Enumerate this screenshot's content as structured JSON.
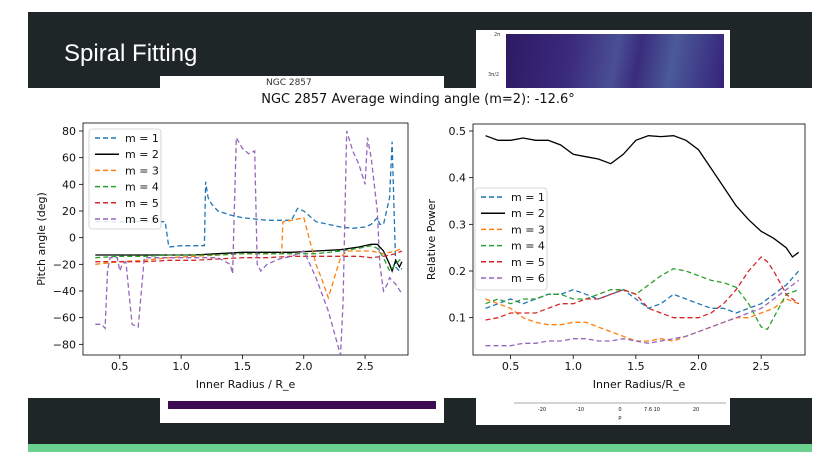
{
  "slide": {
    "title": "Spiral Fitting",
    "inset_top_ticks": [
      "2π",
      "3π/2"
    ],
    "inset_left_caption": "NGC 2857",
    "bottom_axis_ticks": [
      "-20",
      "-10",
      "0",
      "7.6 10",
      "20"
    ],
    "bottom_axis_label": "p"
  },
  "colors": {
    "slide_bg": "#1f2628",
    "accent_green": "#6ad18e",
    "m1": "#1f77b4",
    "m2": "#000000",
    "m3": "#ff7f0e",
    "m4": "#2ca02c",
    "m5": "#d62728",
    "m6": "#9467bd"
  },
  "chart_data": [
    {
      "type": "line",
      "title": "NGC 2857 Average winding angle (m=2): -12.6°",
      "xlabel": "Inner Radius / R_e",
      "ylabel": "Pitch angle (deg)",
      "xlim": [
        0.2,
        2.85
      ],
      "ylim": [
        -88,
        86
      ],
      "xticks": [
        0.5,
        1.0,
        1.5,
        2.0,
        2.5
      ],
      "xtick_labels": [
        "0.5",
        "1.0",
        "1.5",
        "2.0",
        "2.5"
      ],
      "yticks": [
        80,
        60,
        40,
        20,
        0,
        -20,
        -40,
        -60,
        -80
      ],
      "ytick_labels": [
        "80",
        "60",
        "40",
        "20",
        "0",
        "−20",
        "−40",
        "−60",
        "−80"
      ],
      "legend": "top-left",
      "grid": false,
      "series": [
        {
          "name": "m = 1",
          "color": "#1f77b4",
          "dashed": true,
          "x": [
            0.3,
            0.5,
            0.6,
            0.7,
            0.8,
            0.87,
            0.9,
            1.0,
            1.1,
            1.19,
            1.2,
            1.22,
            1.25,
            1.3,
            1.4,
            1.5,
            1.6,
            1.7,
            1.8,
            1.9,
            1.95,
            2.0,
            2.1,
            2.2,
            2.3,
            2.4,
            2.5,
            2.55,
            2.6,
            2.62,
            2.65,
            2.7,
            2.72,
            2.75,
            2.78,
            2.8
          ],
          "y": [
            12,
            12,
            12,
            12,
            12,
            12,
            -7,
            -6,
            -6,
            -6,
            42,
            30,
            25,
            20,
            17,
            15,
            14,
            13,
            13,
            13,
            22,
            20,
            12,
            10,
            8,
            7,
            8,
            10,
            15,
            10,
            10,
            30,
            72,
            -22,
            -25,
            -23
          ]
        },
        {
          "name": "m = 2",
          "color": "#000000",
          "dashed": false,
          "x": [
            0.3,
            0.5,
            0.7,
            0.9,
            1.1,
            1.3,
            1.5,
            1.7,
            1.9,
            2.1,
            2.3,
            2.45,
            2.55,
            2.6,
            2.65,
            2.7,
            2.72,
            2.75,
            2.78,
            2.8
          ],
          "y": [
            -13,
            -13,
            -13,
            -13,
            -13,
            -12,
            -11,
            -11,
            -11,
            -10,
            -9,
            -7,
            -5,
            -5,
            -10,
            -20,
            -25,
            -17,
            -22,
            -18
          ]
        },
        {
          "name": "m = 3",
          "color": "#ff7f0e",
          "dashed": true,
          "x": [
            0.3,
            0.5,
            0.7,
            0.9,
            1.1,
            1.3,
            1.5,
            1.7,
            1.82,
            1.83,
            1.9,
            2.0,
            2.1,
            2.15,
            2.2,
            2.25,
            2.3,
            2.35,
            2.45,
            2.55,
            2.65,
            2.75,
            2.8
          ],
          "y": [
            -20,
            -18,
            -17,
            -15,
            -14,
            -13,
            -12,
            -12,
            -12,
            12,
            13,
            15,
            -20,
            -32,
            -45,
            -30,
            -15,
            -10,
            -10,
            -10,
            -12,
            -10,
            -8
          ]
        },
        {
          "name": "m = 4",
          "color": "#2ca02c",
          "dashed": true,
          "x": [
            0.3,
            0.5,
            0.7,
            0.9,
            1.1,
            1.3,
            1.5,
            1.7,
            1.9,
            2.1,
            2.3,
            2.45,
            2.55,
            2.6,
            2.65,
            2.7,
            2.75,
            2.8
          ],
          "y": [
            -15,
            -14,
            -14,
            -13,
            -13,
            -13,
            -12,
            -12,
            -12,
            -12,
            -10,
            -8,
            -6,
            -8,
            -15,
            -25,
            -20,
            -15
          ]
        },
        {
          "name": "m = 5",
          "color": "#d62728",
          "dashed": true,
          "x": [
            0.3,
            0.5,
            0.7,
            0.9,
            1.1,
            1.3,
            1.5,
            1.7,
            1.9,
            2.1,
            2.3,
            2.45,
            2.55,
            2.65,
            2.7,
            2.75,
            2.8
          ],
          "y": [
            -18,
            -18,
            -18,
            -17,
            -17,
            -16,
            -15,
            -15,
            -14,
            -14,
            -14,
            -14,
            -15,
            -14,
            -13,
            -12,
            -10
          ]
        },
        {
          "name": "m = 6",
          "color": "#9467bd",
          "dashed": true,
          "x": [
            0.3,
            0.35,
            0.38,
            0.4,
            0.42,
            0.45,
            0.48,
            0.5,
            0.52,
            0.55,
            0.6,
            0.65,
            0.7,
            0.75,
            0.8,
            0.85,
            0.9,
            1.0,
            1.2,
            1.3,
            1.4,
            1.42,
            1.45,
            1.5,
            1.55,
            1.6,
            1.62,
            1.65,
            1.7,
            1.8,
            1.9,
            2.0,
            2.1,
            2.2,
            2.3,
            2.32,
            2.35,
            2.4,
            2.45,
            2.5,
            2.52,
            2.55,
            2.6,
            2.62,
            2.65,
            2.68,
            2.7,
            2.75,
            2.8
          ],
          "y": [
            -65,
            -65,
            -68,
            -25,
            -15,
            -15,
            -15,
            -25,
            -20,
            -18,
            -65,
            -67,
            -15,
            -15,
            -15,
            -15,
            -15,
            -15,
            -15,
            -15,
            -20,
            -27,
            75,
            67,
            63,
            65,
            -20,
            -25,
            -20,
            -16,
            -14,
            -10,
            -30,
            -55,
            -88,
            -50,
            80,
            65,
            55,
            40,
            75,
            60,
            20,
            -20,
            -40,
            -35,
            -30,
            -35,
            -42
          ]
        }
      ]
    },
    {
      "type": "line",
      "title": "",
      "xlabel": "Inner Radius/R_e",
      "ylabel": "Relative Power",
      "xlim": [
        0.2,
        2.85
      ],
      "ylim": [
        0.02,
        0.515
      ],
      "xticks": [
        0.5,
        1.0,
        1.5,
        2.0,
        2.5
      ],
      "xtick_labels": [
        "0.5",
        "1.0",
        "1.5",
        "2.0",
        "2.5"
      ],
      "yticks": [
        0.1,
        0.2,
        0.3,
        0.4,
        0.5
      ],
      "ytick_labels": [
        "0.1",
        "0.2",
        "0.3",
        "0.4",
        "0.5"
      ],
      "legend": "center-left",
      "grid": false,
      "series": [
        {
          "name": "m = 1",
          "color": "#1f77b4",
          "dashed": true,
          "x": [
            0.3,
            0.4,
            0.5,
            0.6,
            0.7,
            0.8,
            0.9,
            1.0,
            1.1,
            1.2,
            1.3,
            1.4,
            1.5,
            1.6,
            1.7,
            1.8,
            1.9,
            2.0,
            2.1,
            2.2,
            2.3,
            2.4,
            2.5,
            2.6,
            2.7,
            2.8
          ],
          "y": [
            0.12,
            0.13,
            0.14,
            0.13,
            0.14,
            0.15,
            0.15,
            0.16,
            0.15,
            0.14,
            0.15,
            0.16,
            0.14,
            0.12,
            0.13,
            0.15,
            0.14,
            0.13,
            0.12,
            0.12,
            0.11,
            0.12,
            0.13,
            0.15,
            0.17,
            0.2
          ]
        },
        {
          "name": "m = 2",
          "color": "#000000",
          "dashed": false,
          "x": [
            0.3,
            0.4,
            0.5,
            0.6,
            0.7,
            0.8,
            0.9,
            1.0,
            1.1,
            1.2,
            1.3,
            1.4,
            1.5,
            1.6,
            1.7,
            1.8,
            1.9,
            2.0,
            2.1,
            2.2,
            2.3,
            2.4,
            2.5,
            2.6,
            2.7,
            2.75,
            2.8
          ],
          "y": [
            0.49,
            0.48,
            0.48,
            0.485,
            0.48,
            0.48,
            0.47,
            0.45,
            0.445,
            0.44,
            0.43,
            0.45,
            0.48,
            0.49,
            0.488,
            0.49,
            0.48,
            0.46,
            0.42,
            0.38,
            0.34,
            0.31,
            0.285,
            0.27,
            0.25,
            0.23,
            0.24
          ]
        },
        {
          "name": "m = 3",
          "color": "#ff7f0e",
          "dashed": true,
          "x": [
            0.3,
            0.4,
            0.5,
            0.6,
            0.7,
            0.8,
            0.9,
            1.0,
            1.1,
            1.2,
            1.3,
            1.4,
            1.5,
            1.6,
            1.7,
            1.8,
            1.9,
            2.0,
            2.1,
            2.2,
            2.3,
            2.4,
            2.5,
            2.6,
            2.7,
            2.8
          ],
          "y": [
            0.14,
            0.13,
            0.12,
            0.1,
            0.09,
            0.085,
            0.085,
            0.09,
            0.09,
            0.08,
            0.07,
            0.06,
            0.05,
            0.05,
            0.055,
            0.05,
            0.06,
            0.07,
            0.08,
            0.09,
            0.1,
            0.1,
            0.11,
            0.12,
            0.14,
            0.13
          ]
        },
        {
          "name": "m = 4",
          "color": "#2ca02c",
          "dashed": true,
          "x": [
            0.3,
            0.4,
            0.5,
            0.6,
            0.7,
            0.8,
            0.9,
            1.0,
            1.1,
            1.2,
            1.3,
            1.4,
            1.5,
            1.6,
            1.7,
            1.8,
            1.9,
            2.0,
            2.1,
            2.2,
            2.3,
            2.4,
            2.5,
            2.55,
            2.6,
            2.7,
            2.8
          ],
          "y": [
            0.13,
            0.14,
            0.13,
            0.14,
            0.14,
            0.15,
            0.15,
            0.14,
            0.14,
            0.15,
            0.16,
            0.16,
            0.15,
            0.17,
            0.19,
            0.205,
            0.2,
            0.19,
            0.18,
            0.175,
            0.165,
            0.13,
            0.08,
            0.075,
            0.1,
            0.15,
            0.16
          ]
        },
        {
          "name": "m = 5",
          "color": "#d62728",
          "dashed": true,
          "x": [
            0.3,
            0.4,
            0.5,
            0.6,
            0.7,
            0.8,
            0.9,
            1.0,
            1.1,
            1.2,
            1.3,
            1.4,
            1.5,
            1.6,
            1.7,
            1.8,
            1.9,
            2.0,
            2.1,
            2.2,
            2.3,
            2.4,
            2.5,
            2.55,
            2.6,
            2.7,
            2.8
          ],
          "y": [
            0.095,
            0.1,
            0.11,
            0.11,
            0.11,
            0.12,
            0.13,
            0.13,
            0.14,
            0.14,
            0.15,
            0.16,
            0.15,
            0.12,
            0.11,
            0.1,
            0.1,
            0.1,
            0.11,
            0.13,
            0.16,
            0.2,
            0.23,
            0.22,
            0.2,
            0.15,
            0.13
          ]
        },
        {
          "name": "m = 6",
          "color": "#9467bd",
          "dashed": true,
          "x": [
            0.3,
            0.4,
            0.5,
            0.6,
            0.7,
            0.8,
            0.9,
            1.0,
            1.1,
            1.2,
            1.3,
            1.4,
            1.5,
            1.6,
            1.7,
            1.8,
            1.9,
            2.0,
            2.1,
            2.2,
            2.3,
            2.4,
            2.5,
            2.6,
            2.7,
            2.8
          ],
          "y": [
            0.04,
            0.04,
            0.04,
            0.045,
            0.045,
            0.05,
            0.05,
            0.055,
            0.055,
            0.05,
            0.05,
            0.055,
            0.05,
            0.045,
            0.05,
            0.055,
            0.06,
            0.07,
            0.08,
            0.09,
            0.1,
            0.11,
            0.12,
            0.14,
            0.16,
            0.18
          ]
        }
      ]
    }
  ]
}
